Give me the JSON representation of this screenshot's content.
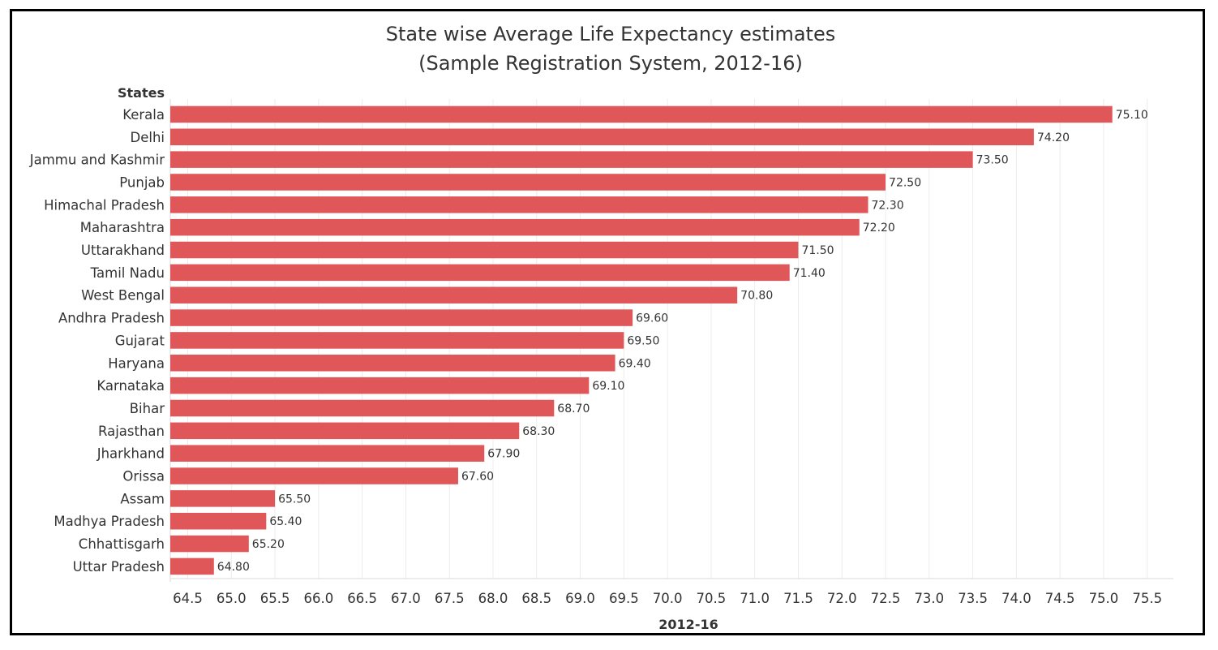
{
  "chart_data": {
    "type": "bar",
    "orientation": "horizontal",
    "title": "State wise Average Life Expectancy estimates",
    "subtitle": "(Sample Registration System, 2012-16)",
    "row_header": "States",
    "xlabel": "2012-16",
    "ylabel": "States",
    "xlim": [
      64.3,
      75.8
    ],
    "xticks": [
      "64.5",
      "65.0",
      "65.5",
      "66.0",
      "66.5",
      "67.0",
      "67.5",
      "68.0",
      "68.5",
      "69.0",
      "69.5",
      "70.0",
      "70.5",
      "71.0",
      "71.5",
      "72.0",
      "72.5",
      "73.0",
      "73.5",
      "74.0",
      "74.5",
      "75.0",
      "75.5"
    ],
    "grid": true,
    "bar_color": "#e05759",
    "categories": [
      "Kerala",
      "Delhi",
      "Jammu and Kashmir",
      "Punjab",
      "Himachal Pradesh",
      "Maharashtra",
      "Uttarakhand",
      "Tamil Nadu",
      "West Bengal",
      "Andhra Pradesh",
      "Gujarat",
      "Haryana",
      "Karnataka",
      "Bihar",
      "Rajasthan",
      "Jharkhand",
      "Orissa",
      "Assam",
      "Madhya Pradesh",
      "Chhattisgarh",
      "Uttar Pradesh"
    ],
    "values": [
      75.1,
      74.2,
      73.5,
      72.5,
      72.3,
      72.2,
      71.5,
      71.4,
      70.8,
      69.6,
      69.5,
      69.4,
      69.1,
      68.7,
      68.3,
      67.9,
      67.6,
      65.5,
      65.4,
      65.2,
      64.8
    ],
    "value_labels": [
      "75.10",
      "74.20",
      "73.50",
      "72.50",
      "72.30",
      "72.20",
      "71.50",
      "71.40",
      "70.80",
      "69.60",
      "69.50",
      "69.40",
      "69.10",
      "68.70",
      "68.30",
      "67.90",
      "67.60",
      "65.50",
      "65.40",
      "65.20",
      "64.80"
    ]
  }
}
